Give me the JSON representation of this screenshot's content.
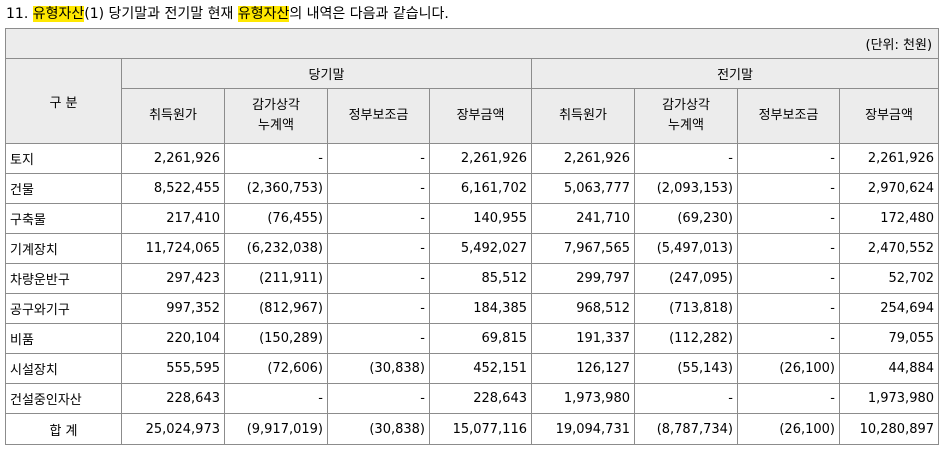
{
  "title": {
    "num": "11. ",
    "hl1": "유형자산",
    "part2": "(1) 당기말과 전기말 현재 ",
    "hl2": "유형자산",
    "part3": "의 내역은 다음과 같습니다."
  },
  "unit": "(단위: 천원)",
  "header": {
    "category": "구 분",
    "current": "당기말",
    "prior": "전기말",
    "cols": [
      "취득원가",
      "감가상각\n누계액",
      "정부보조금",
      "장부금액"
    ]
  },
  "rows": [
    {
      "label": "토지",
      "c": [
        "2,261,926",
        "-",
        "-",
        "2,261,926"
      ],
      "p": [
        "2,261,926",
        "-",
        "-",
        "2,261,926"
      ]
    },
    {
      "label": "건물",
      "c": [
        "8,522,455",
        "(2,360,753)",
        "-",
        "6,161,702"
      ],
      "p": [
        "5,063,777",
        "(2,093,153)",
        "-",
        "2,970,624"
      ]
    },
    {
      "label": "구축물",
      "c": [
        "217,410",
        "(76,455)",
        "-",
        "140,955"
      ],
      "p": [
        "241,710",
        "(69,230)",
        "-",
        "172,480"
      ]
    },
    {
      "label": "기계장치",
      "c": [
        "11,724,065",
        "(6,232,038)",
        "-",
        "5,492,027"
      ],
      "p": [
        "7,967,565",
        "(5,497,013)",
        "-",
        "2,470,552"
      ]
    },
    {
      "label": "차량운반구",
      "c": [
        "297,423",
        "(211,911)",
        "-",
        "85,512"
      ],
      "p": [
        "299,797",
        "(247,095)",
        "-",
        "52,702"
      ]
    },
    {
      "label": "공구와기구",
      "c": [
        "997,352",
        "(812,967)",
        "-",
        "184,385"
      ],
      "p": [
        "968,512",
        "(713,818)",
        "-",
        "254,694"
      ]
    },
    {
      "label": "비품",
      "c": [
        "220,104",
        "(150,289)",
        "-",
        "69,815"
      ],
      "p": [
        "191,337",
        "(112,282)",
        "-",
        "79,055"
      ]
    },
    {
      "label": "시설장치",
      "c": [
        "555,595",
        "(72,606)",
        "(30,838)",
        "452,151"
      ],
      "p": [
        "126,127",
        "(55,143)",
        "(26,100)",
        "44,884"
      ]
    },
    {
      "label": "건설중인자산",
      "c": [
        "228,643",
        "-",
        "-",
        "228,643"
      ],
      "p": [
        "1,973,980",
        "-",
        "-",
        "1,973,980"
      ]
    }
  ],
  "total": {
    "label": "합 계",
    "c": [
      "25,024,973",
      "(9,917,019)",
      "(30,838)",
      "15,077,116"
    ],
    "p": [
      "19,094,731",
      "(8,787,734)",
      "(26,100)",
      "10,280,897"
    ]
  }
}
